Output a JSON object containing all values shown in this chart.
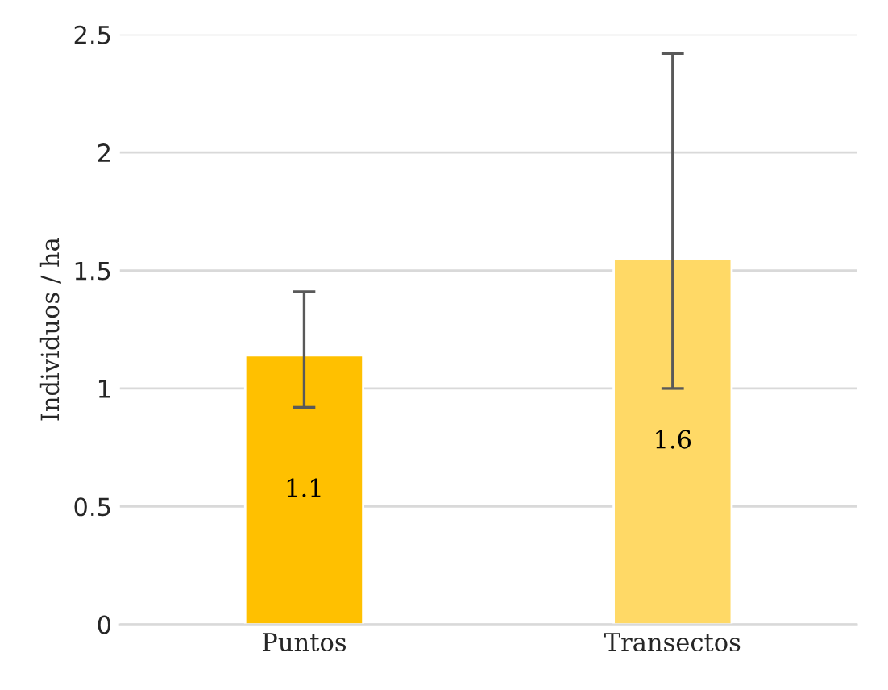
{
  "chart_data": {
    "type": "bar",
    "ylabel": "Individuos / ha",
    "categories": [
      "Puntos",
      "Transectos"
    ],
    "values": [
      1.14,
      1.55
    ],
    "colors": [
      "#ffc000",
      "#ffd966"
    ],
    "errors": [
      [
        0.92,
        1.41
      ],
      [
        1.0,
        2.42
      ]
    ],
    "value_labels": [
      "1.1",
      "1.6"
    ],
    "ylim": [
      0,
      2.5
    ],
    "yticks": [
      0,
      0.5,
      1,
      1.5,
      2,
      2.5
    ],
    "grid": "y",
    "legend": false
  }
}
